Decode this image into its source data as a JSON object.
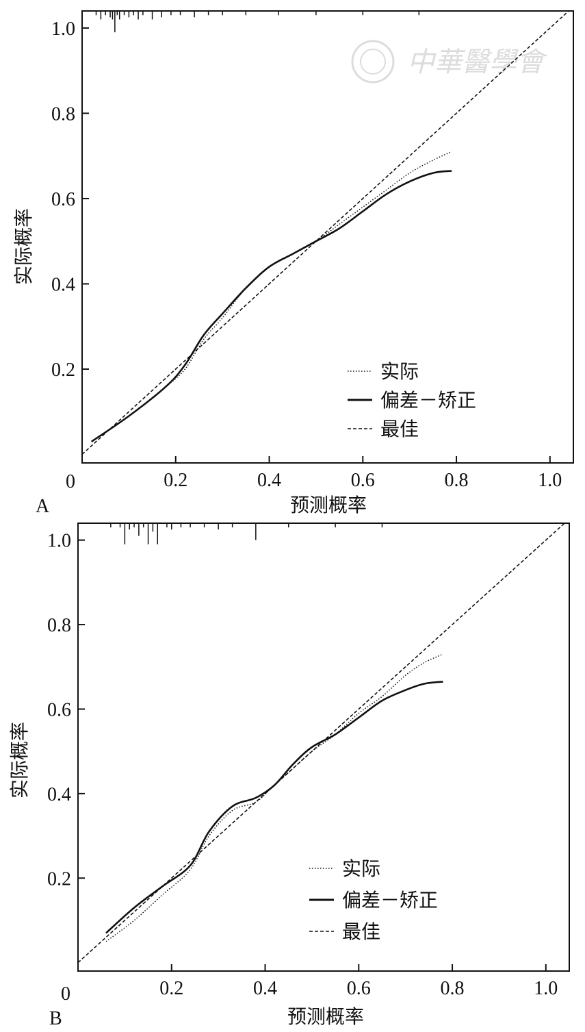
{
  "watermark": {
    "text": "中華醫學會"
  },
  "chart_data": [
    {
      "type": "line",
      "panel_label": "A",
      "xlabel": "预测概率",
      "ylabel": "实际概率",
      "xlim": [
        0,
        1.05
      ],
      "ylim": [
        -0.02,
        1.04
      ],
      "x_ticks": [
        0.2,
        0.4,
        0.6,
        0.8,
        1.0
      ],
      "x_tick_labels": [
        "0.2",
        "0.4",
        "0.6",
        "0.8",
        "1.0"
      ],
      "y_ticks": [
        0.2,
        0.4,
        0.6,
        0.8,
        1.0
      ],
      "y_tick_labels": [
        "0.2",
        "0.4",
        "0.6",
        "0.8",
        "1.0"
      ],
      "origin_label": "0",
      "legend": {
        "position": "lower-right"
      },
      "series": [
        {
          "name": "实际",
          "style": "dotted",
          "points": [
            [
              0.02,
              0.03
            ],
            [
              0.1,
              0.09
            ],
            [
              0.18,
              0.16
            ],
            [
              0.22,
              0.2
            ],
            [
              0.26,
              0.27
            ],
            [
              0.3,
              0.32
            ],
            [
              0.35,
              0.39
            ],
            [
              0.4,
              0.44
            ],
            [
              0.45,
              0.47
            ],
            [
              0.5,
              0.5
            ],
            [
              0.55,
              0.54
            ],
            [
              0.6,
              0.58
            ],
            [
              0.65,
              0.62
            ],
            [
              0.7,
              0.66
            ],
            [
              0.75,
              0.69
            ],
            [
              0.79,
              0.71
            ]
          ]
        },
        {
          "name": "偏差－矫正",
          "style": "solid",
          "points": [
            [
              0.02,
              0.03
            ],
            [
              0.1,
              0.09
            ],
            [
              0.18,
              0.16
            ],
            [
              0.22,
              0.21
            ],
            [
              0.26,
              0.28
            ],
            [
              0.3,
              0.33
            ],
            [
              0.35,
              0.39
            ],
            [
              0.4,
              0.44
            ],
            [
              0.45,
              0.47
            ],
            [
              0.5,
              0.5
            ],
            [
              0.55,
              0.53
            ],
            [
              0.6,
              0.57
            ],
            [
              0.65,
              0.61
            ],
            [
              0.7,
              0.64
            ],
            [
              0.75,
              0.66
            ],
            [
              0.79,
              0.665
            ]
          ]
        },
        {
          "name": "最佳",
          "style": "dashed",
          "points": [
            [
              0,
              0
            ],
            [
              1.04,
              1.04
            ]
          ]
        }
      ],
      "rug": [
        0.03,
        0.04,
        0.05,
        0.06,
        0.065,
        0.07,
        0.075,
        0.08,
        0.09,
        0.1,
        0.11,
        0.12,
        0.13,
        0.15,
        0.17,
        0.19,
        0.21,
        0.24,
        0.27,
        0.3,
        0.35,
        0.42,
        0.5,
        0.6,
        0.72
      ],
      "rug_lengths": [
        0.01,
        0.02,
        0.01,
        0.015,
        0.02,
        0.05,
        0.01,
        0.02,
        0.01,
        0.015,
        0.01,
        0.02,
        0.01,
        0.02,
        0.015,
        0.01,
        0.01,
        0.015,
        0.01,
        0.01,
        0.01,
        0.01,
        0.01,
        0.01,
        0.01
      ]
    },
    {
      "type": "line",
      "panel_label": "B",
      "xlabel": "预测概率",
      "ylabel": "实际概率",
      "xlim": [
        0,
        1.05
      ],
      "ylim": [
        -0.02,
        1.04
      ],
      "x_ticks": [
        0.2,
        0.4,
        0.6,
        0.8,
        1.0
      ],
      "x_tick_labels": [
        "0.2",
        "0.4",
        "0.6",
        "0.8",
        "1.0"
      ],
      "y_ticks": [
        0.2,
        0.4,
        0.6,
        0.8,
        1.0
      ],
      "y_tick_labels": [
        "0.2",
        "0.4",
        "0.6",
        "0.8",
        "1.0"
      ],
      "origin_label": "0",
      "legend": {
        "position": "lower-right"
      },
      "series": [
        {
          "name": "实际",
          "style": "dotted",
          "points": [
            [
              0.06,
              0.05
            ],
            [
              0.12,
              0.1
            ],
            [
              0.18,
              0.16
            ],
            [
              0.24,
              0.22
            ],
            [
              0.28,
              0.3
            ],
            [
              0.33,
              0.36
            ],
            [
              0.38,
              0.38
            ],
            [
              0.42,
              0.42
            ],
            [
              0.46,
              0.46
            ],
            [
              0.5,
              0.5
            ],
            [
              0.55,
              0.54
            ],
            [
              0.6,
              0.59
            ],
            [
              0.65,
              0.63
            ],
            [
              0.7,
              0.68
            ],
            [
              0.74,
              0.71
            ],
            [
              0.78,
              0.73
            ]
          ]
        },
        {
          "name": "偏差－矫正",
          "style": "solid",
          "points": [
            [
              0.06,
              0.07
            ],
            [
              0.12,
              0.13
            ],
            [
              0.18,
              0.18
            ],
            [
              0.24,
              0.23
            ],
            [
              0.28,
              0.31
            ],
            [
              0.33,
              0.37
            ],
            [
              0.38,
              0.39
            ],
            [
              0.42,
              0.42
            ],
            [
              0.46,
              0.47
            ],
            [
              0.5,
              0.51
            ],
            [
              0.55,
              0.54
            ],
            [
              0.6,
              0.58
            ],
            [
              0.65,
              0.62
            ],
            [
              0.7,
              0.645
            ],
            [
              0.74,
              0.66
            ],
            [
              0.78,
              0.665
            ]
          ]
        },
        {
          "name": "最佳",
          "style": "dashed",
          "points": [
            [
              0,
              0
            ],
            [
              1.04,
              1.04
            ]
          ]
        }
      ],
      "rug": [
        0.07,
        0.09,
        0.1,
        0.11,
        0.12,
        0.13,
        0.14,
        0.15,
        0.16,
        0.17,
        0.19,
        0.2,
        0.22,
        0.24,
        0.27,
        0.3,
        0.33,
        0.38,
        0.45,
        0.55,
        0.65
      ],
      "rug_lengths": [
        0.01,
        0.01,
        0.05,
        0.015,
        0.01,
        0.03,
        0.01,
        0.05,
        0.02,
        0.05,
        0.01,
        0.015,
        0.01,
        0.01,
        0.01,
        0.015,
        0.01,
        0.04,
        0.01,
        0.01,
        0.01
      ]
    }
  ]
}
